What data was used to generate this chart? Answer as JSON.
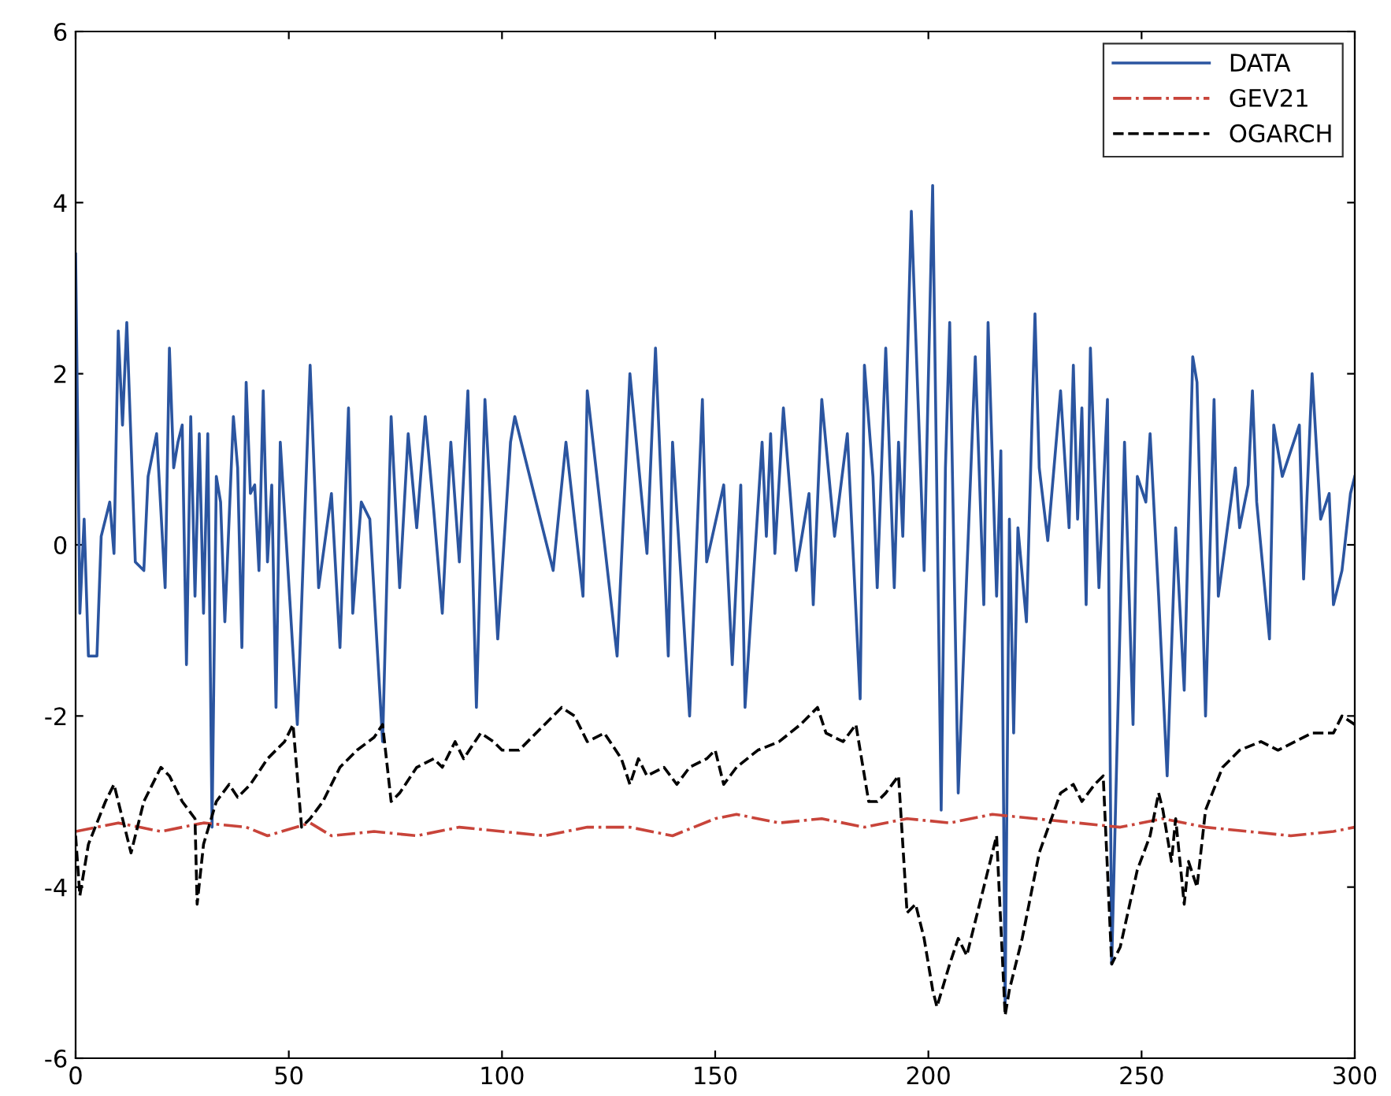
{
  "chart_data": {
    "type": "line",
    "xlim": [
      0,
      300
    ],
    "ylim": [
      -6,
      6
    ],
    "xticks": [
      0,
      50,
      100,
      150,
      200,
      250,
      300
    ],
    "yticks": [
      -6,
      -4,
      -2,
      0,
      2,
      4,
      6
    ],
    "grid": false,
    "legend": "top right",
    "marker": "none",
    "series": [
      {
        "name": "DATA",
        "color": "#2b55a0",
        "line_style": "solid",
        "x": [
          0,
          1,
          2,
          3,
          5,
          6,
          8,
          9,
          10,
          11,
          12,
          14,
          16,
          17,
          19,
          21,
          22,
          23,
          24,
          25,
          26,
          27,
          28,
          29,
          30,
          31,
          32,
          33,
          34,
          35,
          36,
          37,
          38,
          39,
          40,
          41,
          42,
          43,
          44,
          45,
          46,
          47,
          48,
          52,
          55,
          57,
          60,
          62,
          64,
          65,
          67,
          69,
          72,
          74,
          76,
          78,
          80,
          82,
          84,
          86,
          88,
          90,
          92,
          94,
          96,
          99,
          102,
          103,
          112,
          115,
          119,
          120,
          127,
          130,
          134,
          136,
          139,
          140,
          144,
          147,
          148,
          152,
          154,
          156,
          157,
          161,
          162,
          163,
          164,
          166,
          169,
          172,
          173,
          175,
          178,
          181,
          184,
          185,
          187,
          188,
          190,
          192,
          193,
          194,
          196,
          199,
          201,
          203,
          204,
          205,
          207,
          211,
          213,
          214,
          216,
          217,
          218,
          219,
          220,
          221,
          223,
          225,
          226,
          228,
          231,
          233,
          234,
          235,
          236,
          237,
          238,
          240,
          242,
          243,
          246,
          248,
          249,
          251,
          252,
          254,
          256,
          258,
          260,
          262,
          263,
          265,
          267,
          268,
          272,
          273,
          275,
          276,
          277,
          280,
          281,
          283,
          287,
          288,
          290,
          292,
          294,
          295,
          297,
          299,
          300
        ],
        "values": [
          3.4,
          -0.8,
          0.3,
          -1.3,
          -1.3,
          0.1,
          0.5,
          -0.1,
          2.5,
          1.4,
          2.6,
          -0.2,
          -0.3,
          0.8,
          1.3,
          -0.5,
          2.3,
          0.9,
          1.2,
          1.4,
          -1.4,
          1.5,
          -0.6,
          1.3,
          -0.8,
          1.3,
          -3.3,
          0.8,
          0.5,
          -0.9,
          0.3,
          1.5,
          0.9,
          -1.2,
          1.9,
          0.6,
          0.7,
          -0.3,
          1.8,
          -0.2,
          0.7,
          -1.9,
          1.2,
          -2.1,
          2.1,
          -0.5,
          0.6,
          -1.2,
          1.6,
          -0.8,
          0.5,
          0.3,
          -2.3,
          1.5,
          -0.5,
          1.3,
          0.2,
          1.5,
          0.4,
          -0.8,
          1.2,
          -0.2,
          1.8,
          -1.9,
          1.7,
          -1.1,
          1.2,
          1.5,
          -0.3,
          1.2,
          -0.6,
          1.8,
          -1.3,
          2.0,
          -0.1,
          2.3,
          -1.3,
          1.2,
          -2.0,
          1.7,
          -0.2,
          0.7,
          -1.4,
          0.7,
          -1.9,
          1.2,
          0.1,
          1.3,
          -0.1,
          1.6,
          -0.3,
          0.6,
          -0.7,
          1.7,
          0.1,
          1.3,
          -1.8,
          2.1,
          0.8,
          -0.5,
          2.3,
          -0.5,
          1.2,
          0.1,
          3.9,
          -0.3,
          4.2,
          -3.1,
          0.9,
          2.6,
          -2.9,
          2.2,
          -0.7,
          2.6,
          -0.6,
          1.1,
          -5.4,
          0.3,
          -2.2,
          0.2,
          -0.9,
          2.7,
          0.9,
          0.05,
          1.8,
          0.2,
          2.1,
          0.3,
          1.6,
          -0.7,
          2.3,
          -0.5,
          1.7,
          -4.9,
          1.2,
          -2.1,
          0.8,
          0.5,
          1.3,
          -0.6,
          -2.7,
          0.2,
          -1.7,
          2.2,
          1.9,
          -2.0,
          1.7,
          -0.6,
          0.9,
          0.2,
          0.7,
          1.8,
          0.5,
          -1.1,
          1.4,
          0.8,
          1.4,
          -0.4,
          2.0,
          0.3,
          0.6,
          -0.7,
          -0.3,
          0.6,
          0.8
        ]
      },
      {
        "name": "GEV21",
        "color": "#c8443a",
        "line_style": "dashdot",
        "x": [
          0,
          10,
          15,
          20,
          30,
          40,
          45,
          55,
          60,
          70,
          80,
          90,
          100,
          110,
          120,
          130,
          140,
          150,
          155,
          165,
          175,
          185,
          195,
          205,
          215,
          225,
          235,
          245,
          255,
          265,
          275,
          285,
          295,
          300
        ],
        "values": [
          -3.35,
          -3.25,
          -3.3,
          -3.35,
          -3.25,
          -3.3,
          -3.4,
          -3.25,
          -3.4,
          -3.35,
          -3.4,
          -3.3,
          -3.35,
          -3.4,
          -3.3,
          -3.3,
          -3.4,
          -3.2,
          -3.15,
          -3.25,
          -3.2,
          -3.3,
          -3.2,
          -3.25,
          -3.15,
          -3.2,
          -3.25,
          -3.3,
          -3.2,
          -3.3,
          -3.35,
          -3.4,
          -3.35,
          -3.3
        ]
      },
      {
        "name": "OGARCH",
        "color": "#000000",
        "line_style": "dashed",
        "x": [
          0,
          1,
          3,
          7,
          9,
          11,
          13,
          16,
          20,
          22,
          25,
          28,
          28.5,
          30,
          33,
          36,
          38,
          41,
          45,
          49,
          51,
          53,
          55,
          58,
          62,
          66,
          70,
          72,
          74,
          76,
          80,
          84,
          86,
          89,
          91,
          95,
          98,
          100,
          104,
          108,
          112,
          114,
          117,
          120,
          124,
          128,
          130,
          132,
          134,
          138,
          141,
          144,
          148,
          150,
          152,
          155,
          160,
          165,
          170,
          174,
          176,
          180,
          183,
          186,
          188,
          190,
          193,
          195,
          197,
          199,
          201,
          202,
          205,
          207,
          209,
          212,
          214,
          216,
          218,
          219,
          222,
          226,
          231,
          234,
          236,
          239,
          241,
          243,
          245,
          249,
          252,
          254,
          255,
          257,
          258,
          260,
          261,
          263,
          265,
          269,
          273,
          278,
          282,
          286,
          290,
          295,
          297,
          300
        ],
        "values": [
          -3.4,
          -4.1,
          -3.5,
          -3.0,
          -2.8,
          -3.2,
          -3.6,
          -3.0,
          -2.6,
          -2.7,
          -3.0,
          -3.2,
          -4.2,
          -3.5,
          -3.0,
          -2.8,
          -2.95,
          -2.8,
          -2.5,
          -2.3,
          -2.1,
          -3.3,
          -3.2,
          -3.0,
          -2.6,
          -2.4,
          -2.25,
          -2.1,
          -3.0,
          -2.9,
          -2.6,
          -2.5,
          -2.6,
          -2.3,
          -2.5,
          -2.2,
          -2.3,
          -2.4,
          -2.4,
          -2.2,
          -2.0,
          -1.9,
          -2.0,
          -2.3,
          -2.2,
          -2.5,
          -2.8,
          -2.5,
          -2.7,
          -2.6,
          -2.8,
          -2.6,
          -2.5,
          -2.4,
          -2.8,
          -2.6,
          -2.4,
          -2.3,
          -2.1,
          -1.9,
          -2.2,
          -2.3,
          -2.1,
          -3.0,
          -3.0,
          -2.9,
          -2.7,
          -4.3,
          -4.2,
          -4.6,
          -5.2,
          -5.4,
          -4.9,
          -4.6,
          -4.8,
          -4.2,
          -3.8,
          -3.4,
          -5.5,
          -5.2,
          -4.6,
          -3.6,
          -2.9,
          -2.8,
          -3.0,
          -2.8,
          -2.7,
          -4.9,
          -4.7,
          -3.8,
          -3.4,
          -2.9,
          -3.1,
          -3.7,
          -3.2,
          -4.2,
          -3.7,
          -4.0,
          -3.1,
          -2.6,
          -2.4,
          -2.3,
          -2.4,
          -2.3,
          -2.2,
          -2.2,
          -2.0,
          -2.1
        ]
      }
    ]
  }
}
